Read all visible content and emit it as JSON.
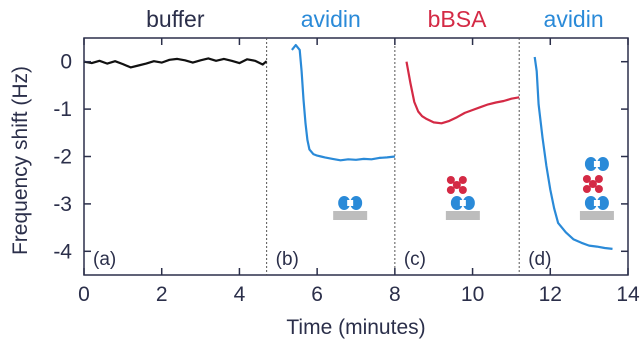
{
  "chart_data": {
    "type": "line",
    "xlabel": "Time (minutes)",
    "ylabel": "Frequency shift (Hz)",
    "xlim": [
      0,
      14
    ],
    "ylim": [
      -4.5,
      0.5
    ],
    "xticks": [
      0,
      2,
      4,
      6,
      8,
      10,
      12,
      14
    ],
    "yticks": [
      0,
      -1,
      -2,
      -3,
      -4
    ],
    "x_tick_labels": [
      "0",
      "2",
      "4",
      "6",
      "8",
      "10",
      "12",
      "14"
    ],
    "y_tick_labels": [
      "0",
      "-1",
      "-2",
      "-3",
      "-4"
    ],
    "grid": false,
    "dividers_x": [
      4.7,
      8.0,
      11.2
    ],
    "phases": [
      {
        "name": "buffer",
        "color": "#2b2f4a",
        "panel": "(a)",
        "x_start": 0.0,
        "x_end": 4.7
      },
      {
        "name": "avidin",
        "color": "#2a8ad8",
        "panel": "(b)",
        "x_start": 4.7,
        "x_end": 8.0
      },
      {
        "name": "bBSA",
        "color": "#d42a45",
        "panel": "(c)",
        "x_start": 8.0,
        "x_end": 11.2
      },
      {
        "name": "avidin",
        "color": "#2a8ad8",
        "panel": "(d)",
        "x_start": 11.2,
        "x_end": 14.0
      }
    ],
    "series": [
      {
        "color": "#111111",
        "x": [
          0.0,
          0.2,
          0.4,
          0.6,
          0.8,
          1.0,
          1.2,
          1.4,
          1.6,
          1.8,
          2.0,
          2.2,
          2.4,
          2.6,
          2.8,
          3.0,
          3.2,
          3.4,
          3.6,
          3.8,
          4.0,
          4.2,
          4.4,
          4.6,
          4.7
        ],
        "y": [
          0.0,
          -0.03,
          0.02,
          -0.04,
          0.01,
          -0.05,
          -0.12,
          -0.08,
          -0.04,
          0.01,
          -0.02,
          0.04,
          0.06,
          0.03,
          -0.02,
          0.03,
          0.07,
          0.02,
          0.06,
          0.02,
          -0.03,
          0.05,
          0.02,
          -0.06,
          0.01
        ]
      },
      {
        "color": "#2a8ad8",
        "x": [
          5.35,
          5.45,
          5.55,
          5.6,
          5.65,
          5.7,
          5.75,
          5.8,
          5.9,
          6.0,
          6.1,
          6.2,
          6.4,
          6.6,
          6.8,
          7.0,
          7.2,
          7.4,
          7.6,
          7.8,
          8.0
        ],
        "y": [
          0.25,
          0.35,
          0.25,
          -0.2,
          -0.8,
          -1.3,
          -1.65,
          -1.85,
          -1.95,
          -1.98,
          -2.0,
          -2.02,
          -2.05,
          -2.08,
          -2.06,
          -2.07,
          -2.05,
          -2.06,
          -2.03,
          -2.02,
          -2.0
        ]
      },
      {
        "color": "#d42a45",
        "x": [
          8.3,
          8.4,
          8.5,
          8.6,
          8.7,
          8.8,
          9.0,
          9.2,
          9.4,
          9.6,
          9.8,
          10.0,
          10.2,
          10.4,
          10.6,
          10.8,
          11.0,
          11.2
        ],
        "y": [
          0.0,
          -0.45,
          -0.85,
          -1.05,
          -1.15,
          -1.2,
          -1.28,
          -1.3,
          -1.25,
          -1.17,
          -1.08,
          -1.02,
          -0.96,
          -0.9,
          -0.86,
          -0.83,
          -0.78,
          -0.75
        ]
      },
      {
        "color": "#2a8ad8",
        "x": [
          11.6,
          11.65,
          11.7,
          11.8,
          11.9,
          12.0,
          12.1,
          12.2,
          12.4,
          12.6,
          12.8,
          13.0,
          13.2,
          13.4,
          13.6
        ],
        "y": [
          0.1,
          -0.2,
          -0.9,
          -1.6,
          -2.2,
          -2.7,
          -3.1,
          -3.4,
          -3.6,
          -3.75,
          -3.82,
          -3.88,
          -3.9,
          -3.93,
          -3.95
        ]
      }
    ],
    "diagram_colors": {
      "substrate": "#bdbdbd",
      "avidin": "#2a8ad8",
      "bbsa": "#d42a45"
    }
  }
}
